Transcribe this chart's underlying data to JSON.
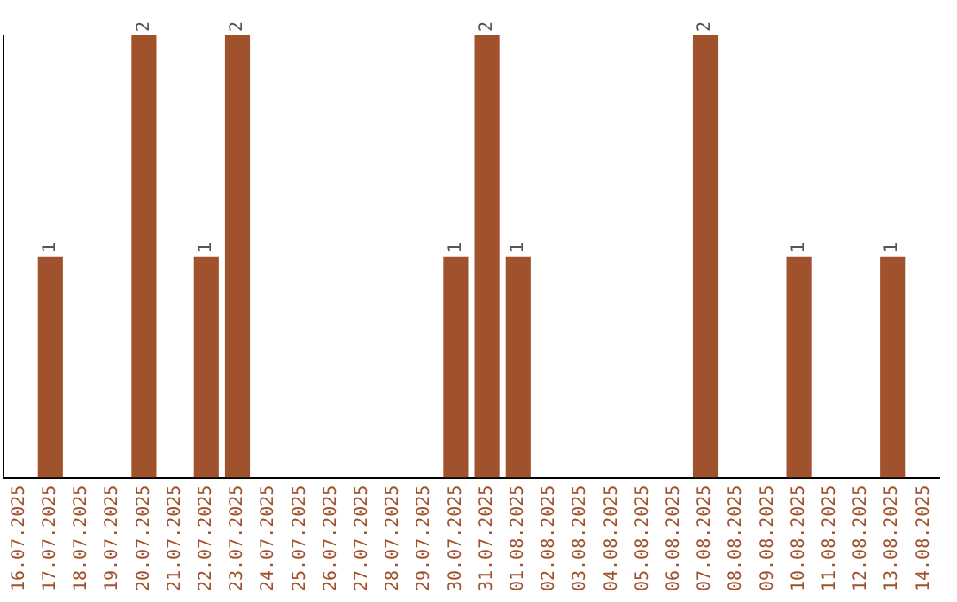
{
  "chart_data": {
    "type": "bar",
    "categories": [
      "16.07.2025",
      "17.07.2025",
      "18.07.2025",
      "19.07.2025",
      "20.07.2025",
      "21.07.2025",
      "22.07.2025",
      "23.07.2025",
      "24.07.2025",
      "25.07.2025",
      "26.07.2025",
      "27.07.2025",
      "28.07.2025",
      "29.07.2025",
      "30.07.2025",
      "31.07.2025",
      "01.08.2025",
      "02.08.2025",
      "03.08.2025",
      "04.08.2025",
      "05.08.2025",
      "06.08.2025",
      "07.08.2025",
      "08.08.2025",
      "09.08.2025",
      "10.08.2025",
      "11.08.2025",
      "12.08.2025",
      "13.08.2025",
      "14.08.2025"
    ],
    "values": [
      0,
      1,
      0,
      0,
      2,
      0,
      1,
      2,
      0,
      0,
      0,
      0,
      0,
      0,
      1,
      2,
      1,
      0,
      0,
      0,
      0,
      0,
      2,
      0,
      0,
      1,
      0,
      0,
      1,
      0
    ],
    "color": "#a0522d",
    "ylim": [
      0,
      2
    ],
    "value_labels": [
      null,
      "1",
      null,
      null,
      "2",
      null,
      "1",
      "2",
      null,
      null,
      null,
      null,
      null,
      null,
      "1",
      "2",
      "1",
      null,
      null,
      null,
      null,
      null,
      "2",
      null,
      null,
      "1",
      null,
      null,
      "1",
      null
    ],
    "grid": false,
    "legend": false,
    "tick_labels": "x"
  }
}
